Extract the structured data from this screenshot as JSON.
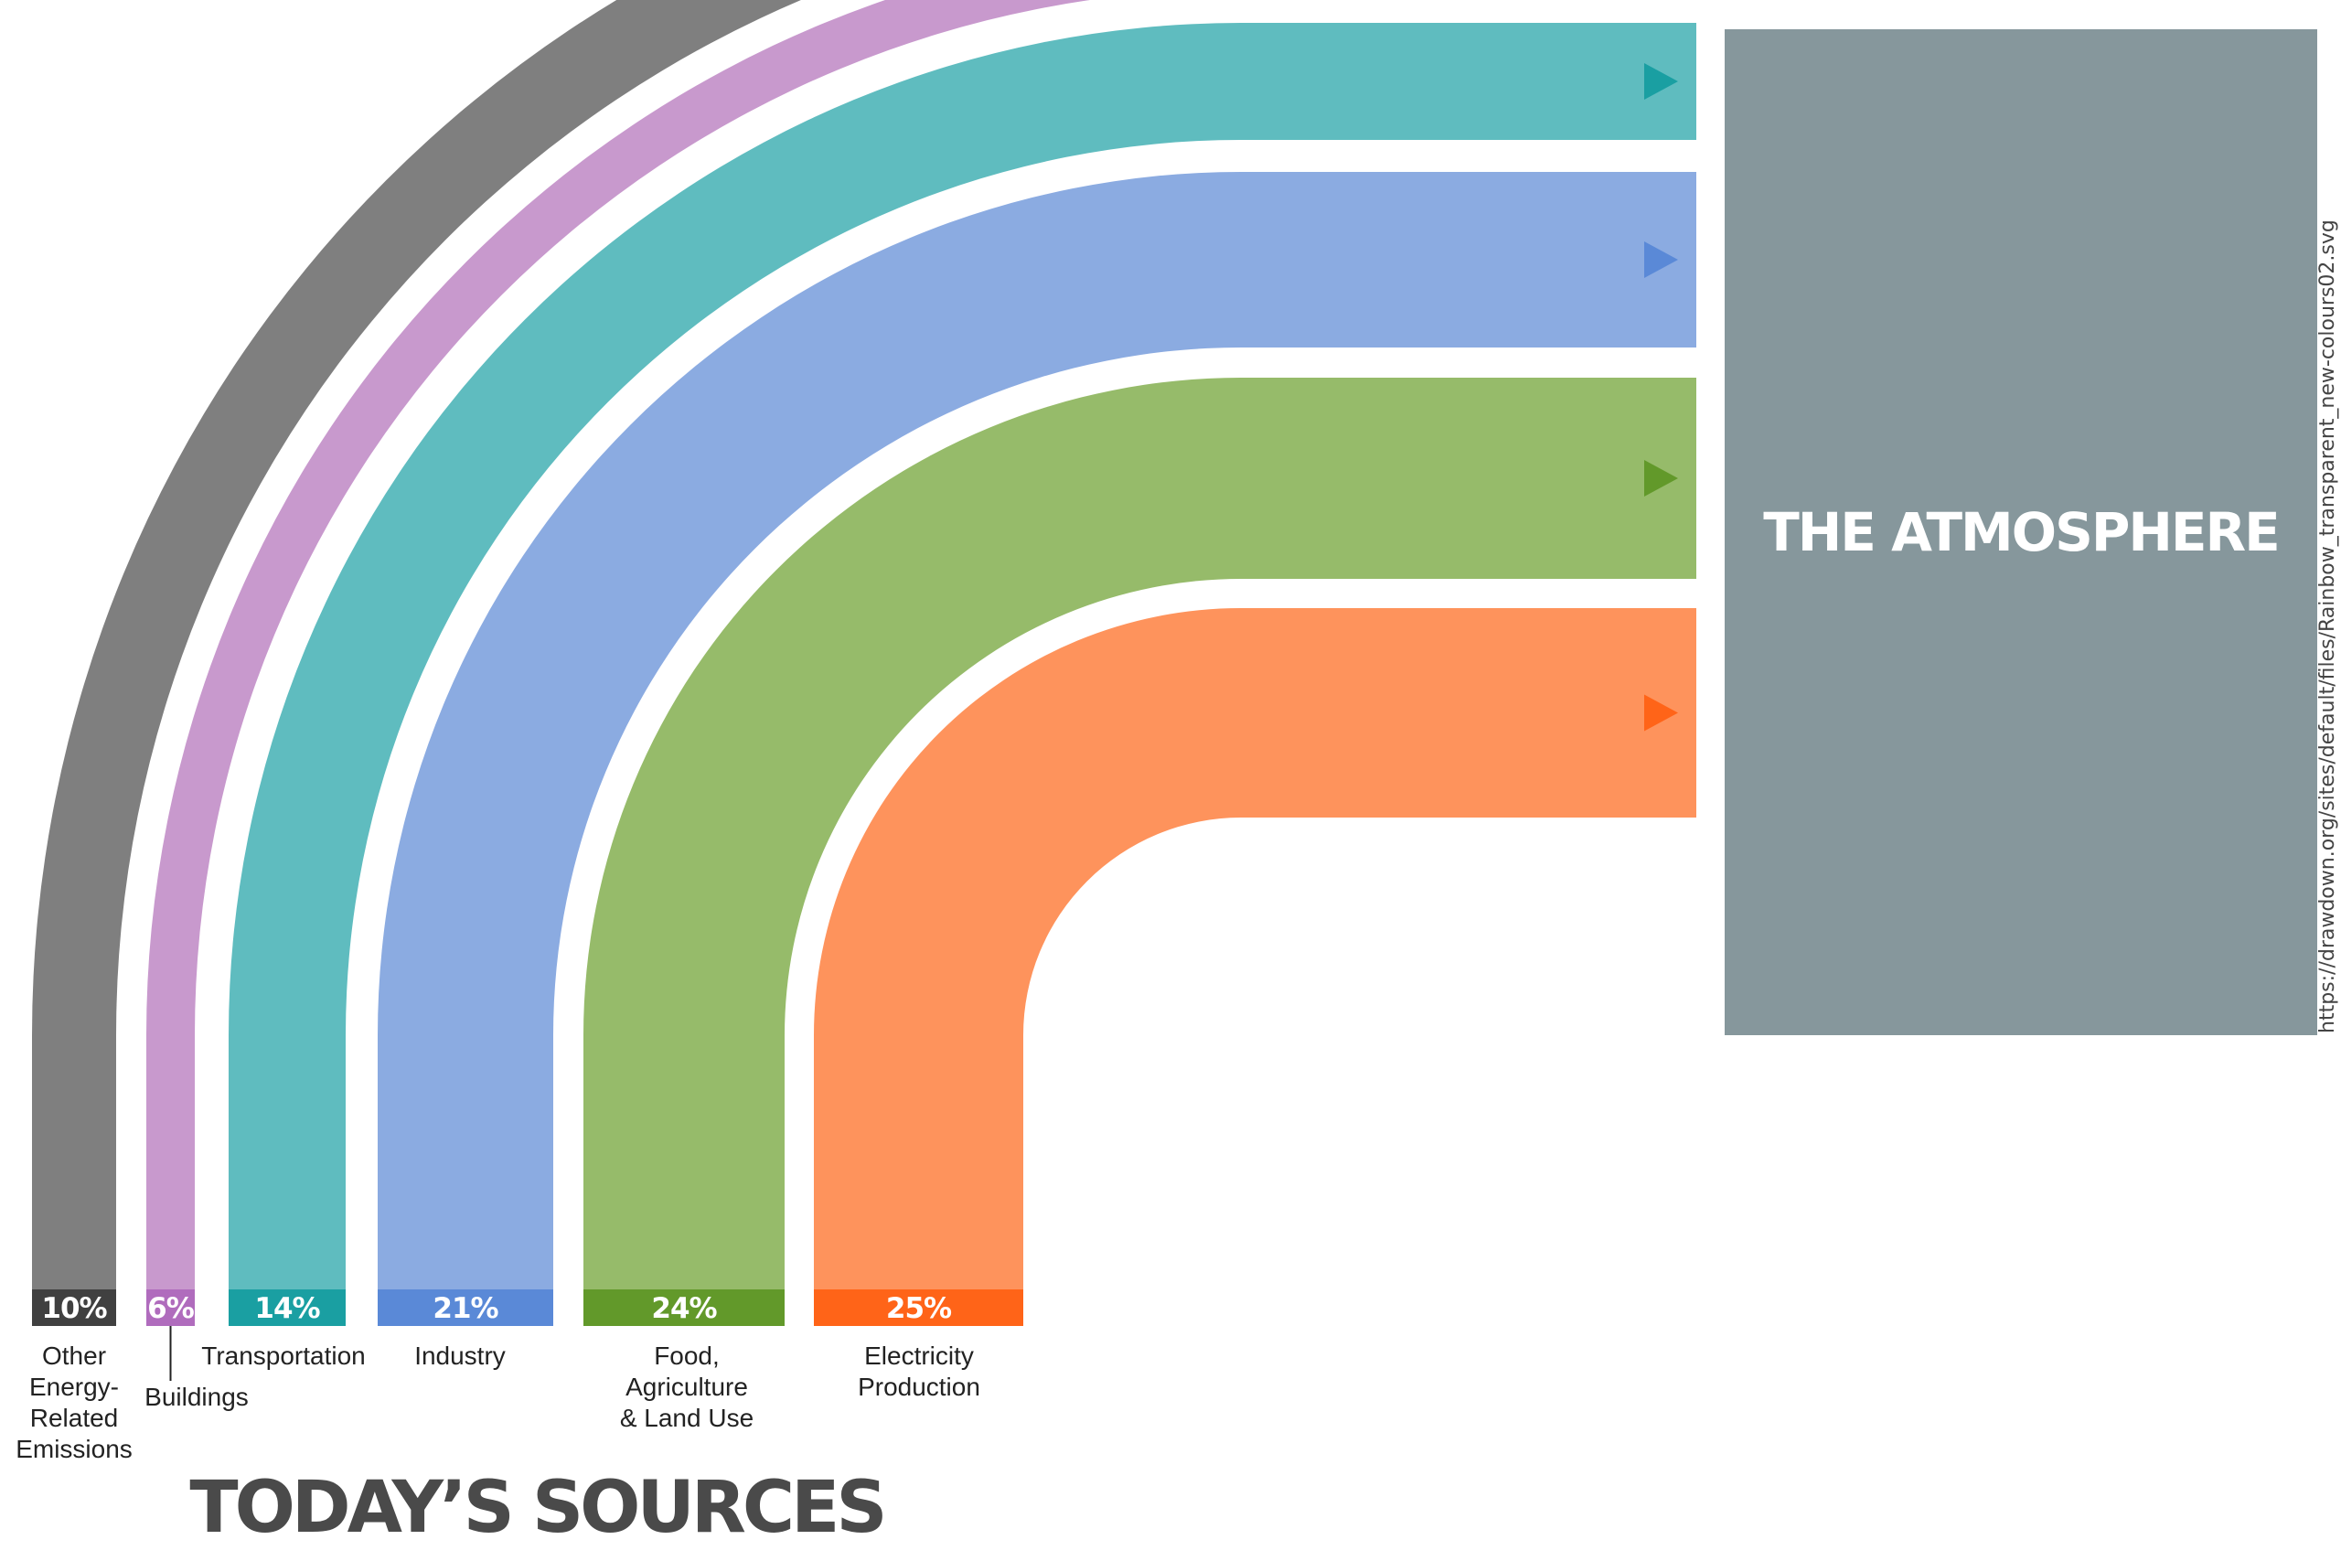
{
  "diagram": {
    "title": "TODAY’S SOURCES",
    "target": "THE ATMOSPHERE",
    "url": "https://drawdown.org/sites/default/files/Rainbow_transparent_new-colours02.svg",
    "colors": {
      "target_box": "#86979c",
      "title": "#4a4a4a"
    },
    "sources": [
      {
        "id": "other",
        "percent": "10%",
        "label": [
          "Other",
          "Energy-",
          "Related",
          "Emissions"
        ],
        "band_color": "#7f7f7f",
        "tag_color": "#404040",
        "arrow_color": "#404040"
      },
      {
        "id": "buildings",
        "percent": "6%",
        "label": [
          "Buildings"
        ],
        "band_color": "#c899cd",
        "tag_color": "#b06cbd",
        "arrow_color": "#b06cbd"
      },
      {
        "id": "transportation",
        "percent": "14%",
        "label": [
          "Transportation"
        ],
        "band_color": "#5fbcbf",
        "tag_color": "#1a9fa2",
        "arrow_color": "#1a9fa2"
      },
      {
        "id": "industry",
        "percent": "21%",
        "label": [
          "Industry"
        ],
        "band_color": "#8babe1",
        "tag_color": "#5a89d7",
        "arrow_color": "#5a89d7"
      },
      {
        "id": "food",
        "percent": "24%",
        "label": [
          "Food,",
          "Agriculture",
          "& Land Use"
        ],
        "band_color": "#96bb6a",
        "tag_color": "#62992a",
        "arrow_color": "#62992a"
      },
      {
        "id": "electricity",
        "percent": "25%",
        "label": [
          "Electricity",
          "Production"
        ],
        "band_color": "#fe935c",
        "tag_color": "#ff6418",
        "arrow_color": "#ff6418"
      }
    ]
  }
}
